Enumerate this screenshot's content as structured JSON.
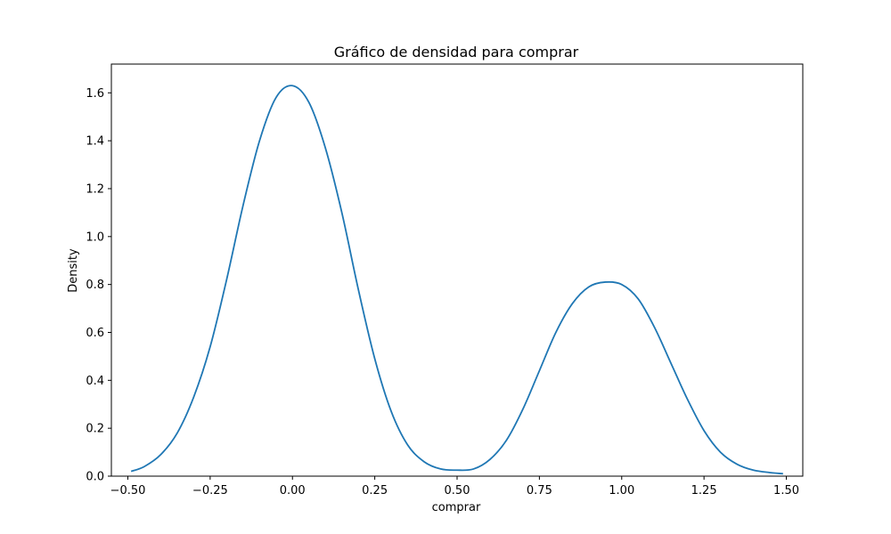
{
  "chart_data": {
    "type": "line",
    "title": "Gráfico de densidad para comprar",
    "xlabel": "comprar",
    "ylabel": "Density",
    "xlim": [
      -0.55,
      1.55
    ],
    "ylim": [
      0,
      1.72
    ],
    "x_ticks": [
      -0.5,
      -0.25,
      0.0,
      0.25,
      0.5,
      0.75,
      1.0,
      1.25,
      1.5
    ],
    "x_tick_labels": [
      "−0.50",
      "−0.25",
      "0.00",
      "0.25",
      "0.50",
      "0.75",
      "1.00",
      "1.25",
      "1.50"
    ],
    "y_ticks": [
      0.0,
      0.2,
      0.4,
      0.6,
      0.8,
      1.0,
      1.2,
      1.4,
      1.6
    ],
    "y_tick_labels": [
      "0.0",
      "0.2",
      "0.4",
      "0.6",
      "0.8",
      "1.0",
      "1.2",
      "1.4",
      "1.6"
    ],
    "grid": false,
    "legend": "none",
    "series_color": "#1f77b4",
    "series": [
      {
        "x": [
          -0.49,
          -0.45,
          -0.4,
          -0.35,
          -0.3,
          -0.25,
          -0.2,
          -0.15,
          -0.1,
          -0.05,
          0.0,
          0.05,
          0.1,
          0.15,
          0.2,
          0.25,
          0.3,
          0.35,
          0.4,
          0.45,
          0.5,
          0.55,
          0.6,
          0.65,
          0.7,
          0.75,
          0.8,
          0.85,
          0.9,
          0.95,
          1.0,
          1.05,
          1.1,
          1.15,
          1.2,
          1.25,
          1.3,
          1.35,
          1.4,
          1.45,
          1.49
        ],
        "y": [
          0.02,
          0.04,
          0.09,
          0.18,
          0.33,
          0.54,
          0.82,
          1.13,
          1.4,
          1.58,
          1.63,
          1.56,
          1.37,
          1.1,
          0.78,
          0.49,
          0.27,
          0.13,
          0.06,
          0.03,
          0.025,
          0.03,
          0.07,
          0.15,
          0.28,
          0.44,
          0.6,
          0.72,
          0.79,
          0.81,
          0.8,
          0.74,
          0.62,
          0.47,
          0.32,
          0.19,
          0.1,
          0.05,
          0.025,
          0.015,
          0.01
        ]
      }
    ]
  }
}
